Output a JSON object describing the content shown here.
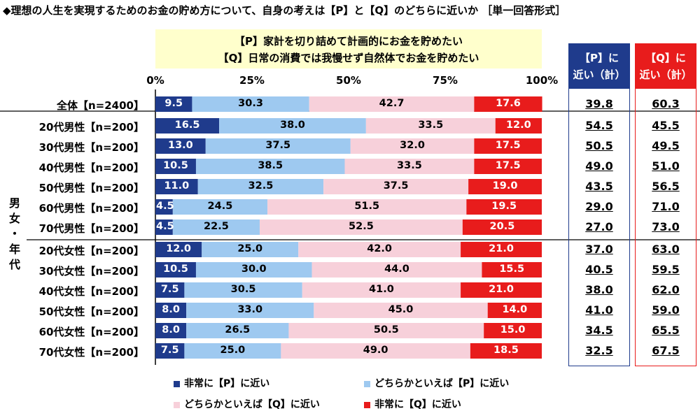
{
  "title": "◆理想の人生を実現するためのお金の貯め方について、自身の考えは【P】と【Q】のどちらに近いか ［単一回答形式］",
  "statements": {
    "p": "【P】家計を切り詰めて計画的にお金を貯めたい",
    "q": "【Q】日常の消費では我慢せず自然体でお金を貯めたい"
  },
  "group_label": "男女・年代",
  "summary_headers": {
    "p_line1": "【P】に",
    "p_line2": "近い（計）",
    "q_line1": "【Q】に",
    "q_line2": "近い（計）"
  },
  "colors": {
    "very_p": "#1f3b8c",
    "somewhat_p": "#9ec9f0",
    "somewhat_q": "#f7d0da",
    "very_q": "#e81c1c",
    "yellow_box": "#ffffcc"
  },
  "chart_data": {
    "type": "bar",
    "orientation": "horizontal",
    "stacked": true,
    "xlim": [
      0,
      100
    ],
    "x_ticks": [
      "0%",
      "25%",
      "50%",
      "75%",
      "100%"
    ],
    "categories": [
      "全体【n=2400】",
      "20代男性【n=200】",
      "30代男性【n=200】",
      "40代男性【n=200】",
      "50代男性【n=200】",
      "60代男性【n=200】",
      "70代男性【n=200】",
      "20代女性【n=200】",
      "30代女性【n=200】",
      "40代女性【n=200】",
      "50代女性【n=200】",
      "60代女性【n=200】",
      "70代女性【n=200】"
    ],
    "series": [
      {
        "name": "非常に【P】に近い",
        "key": "very_p",
        "values": [
          "9.5",
          "16.5",
          "13.0",
          "10.5",
          "11.0",
          "4.5",
          "4.5",
          "12.0",
          "10.5",
          "7.5",
          "8.0",
          "8.0",
          "7.5"
        ]
      },
      {
        "name": "どちらかといえば【P】に近い",
        "key": "somewhat_p",
        "values": [
          "30.3",
          "38.0",
          "37.5",
          "38.5",
          "32.5",
          "24.5",
          "22.5",
          "25.0",
          "30.0",
          "30.5",
          "33.0",
          "26.5",
          "25.0"
        ]
      },
      {
        "name": "どちらかといえば【Q】に近い",
        "key": "somewhat_q",
        "values": [
          "42.7",
          "33.5",
          "32.0",
          "33.5",
          "37.5",
          "51.5",
          "52.5",
          "42.0",
          "44.0",
          "41.0",
          "45.0",
          "50.5",
          "49.0"
        ]
      },
      {
        "name": "非常に【Q】に近い",
        "key": "very_q",
        "values": [
          "17.6",
          "12.0",
          "17.5",
          "17.5",
          "19.0",
          "19.5",
          "20.5",
          "21.0",
          "15.5",
          "21.0",
          "14.0",
          "15.0",
          "18.5"
        ]
      }
    ],
    "p_total": [
      "39.8",
      "54.5",
      "50.5",
      "49.0",
      "43.5",
      "29.0",
      "27.0",
      "37.0",
      "40.5",
      "38.0",
      "41.0",
      "34.5",
      "32.5"
    ],
    "q_total": [
      "60.3",
      "45.5",
      "49.5",
      "51.0",
      "56.5",
      "71.0",
      "73.0",
      "63.0",
      "59.5",
      "62.0",
      "59.0",
      "65.5",
      "67.5"
    ]
  }
}
